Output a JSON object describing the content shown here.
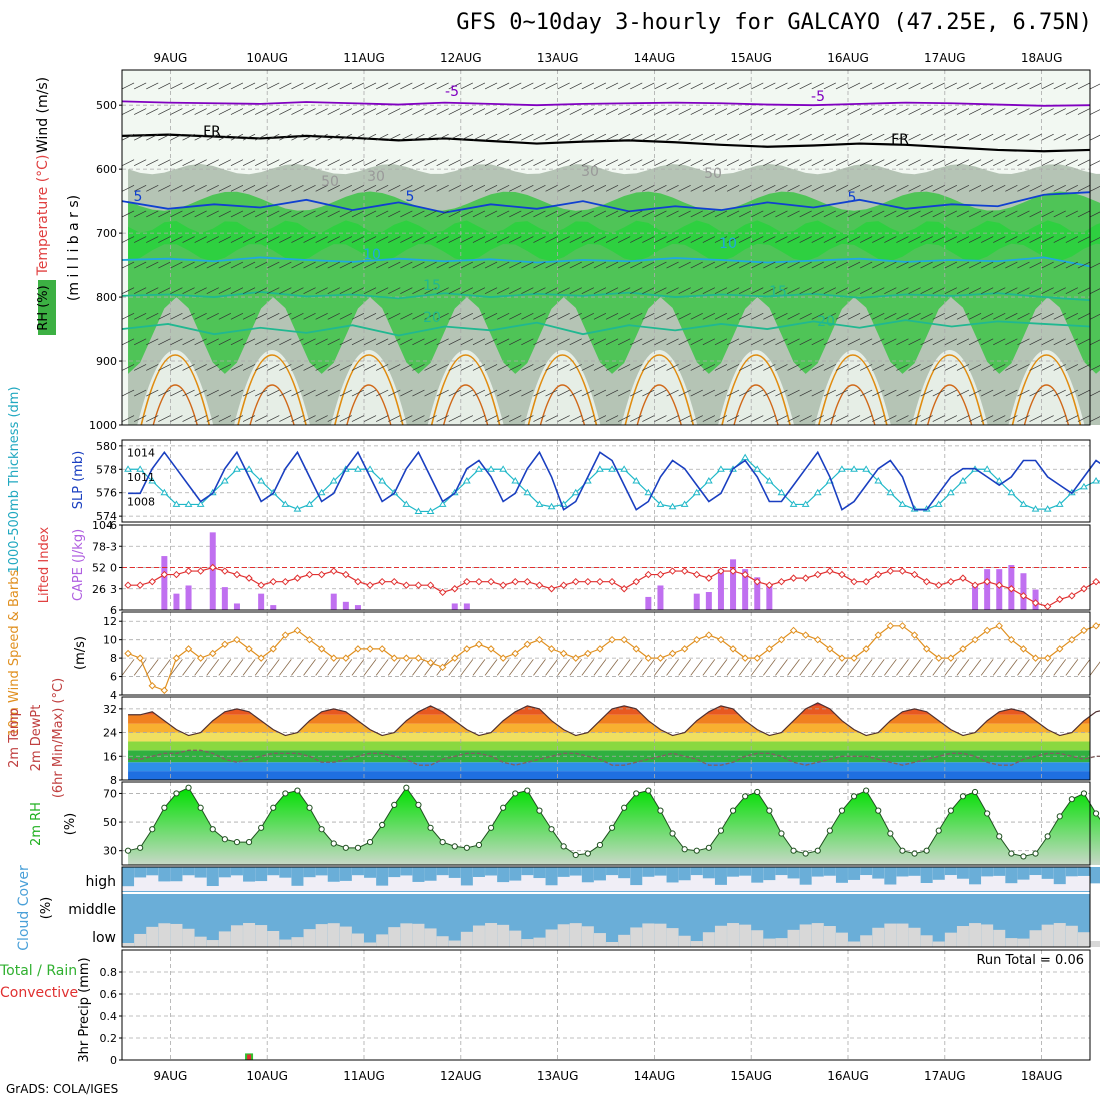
{
  "title": "GFS 0~10day 3-hourly for GALCAYO (47.25E, 6.75N)",
  "credit": "GrADS: COLA/IGES",
  "colors": {
    "rh_green": "#3cb043",
    "rh_bright": "#00e000",
    "rh_grey": "#b5c4b5",
    "temp_line": "#1040d0",
    "temp_cyan": "#20a8e0",
    "temp_teal": "#20b890",
    "temp_orange": "#e08c10",
    "freezing": "#000000",
    "wind_purple": "#8000c0",
    "slp": "#1a3fc0",
    "thickness": "#20b8c8",
    "cape": "#c070f0",
    "lifted": "#e03030",
    "wind10m": "#e09020",
    "cloud_blue": "#6aaed8",
    "cloud_grey": "#d8d8d8",
    "precip_green": "#30c030",
    "precip_red": "#e03030"
  },
  "chart_data": {
    "type": "meteogram",
    "time_axis": {
      "labels": [
        "9AUG",
        "10AUG",
        "11AUG",
        "12AUG",
        "13AUG",
        "14AUG",
        "15AUG",
        "16AUG",
        "17AUG",
        "18AUG"
      ],
      "label_position_days": [
        0.5,
        1.5,
        2.5,
        3.5,
        4.5,
        5.5,
        6.5,
        7.5,
        8.5,
        9.5
      ],
      "range_days": [
        0,
        10
      ],
      "step_hours": 3
    },
    "panels": [
      {
        "id": "upper_air",
        "ylabel": "(m i l l i b a r s)",
        "side_labels": [
          "RH (%)",
          "Temperature (°C)",
          "Wind (m/s)"
        ],
        "yticks": [
          500,
          600,
          700,
          800,
          900,
          1000
        ],
        "ylim": [
          1000,
          445
        ],
        "contour_labels": [
          "-5",
          "-5",
          "FR",
          "FR",
          "5",
          "5",
          "5",
          "10",
          "10",
          "15",
          "15",
          "20",
          "20",
          "30",
          "30",
          "50",
          "50"
        ],
        "isotherms": [
          {
            "label": "-5",
            "p": [
              494,
              496,
              497,
              498,
              495,
              497,
              499,
              496,
              498,
              500,
              498,
              497,
              496,
              497,
              499,
              500,
              498,
              496,
              497,
              499,
              501,
              500
            ]
          },
          {
            "label": "FR",
            "p": [
              548,
              546,
              549,
              552,
              548,
              551,
              555,
              552,
              556,
              560,
              557,
              555,
              558,
              562,
              565,
              563,
              560,
              562,
              566,
              570,
              572,
              570
            ]
          },
          {
            "label": "5",
            "p": [
              650,
              662,
              655,
              660,
              648,
              664,
              652,
              668,
              655,
              662,
              650,
              666,
              658,
              664,
              652,
              660,
              648,
              662,
              655,
              658,
              640,
              636
            ]
          },
          {
            "label": "10",
            "p": [
              742,
              740,
              744,
              738,
              742,
              745,
              740,
              744,
              741,
              746,
              742,
              744,
              739,
              742,
              746,
              743,
              740,
              745,
              742,
              744,
              738,
              752
            ]
          },
          {
            "label": "15",
            "p": [
              798,
              796,
              800,
              792,
              799,
              796,
              802,
              794,
              800,
              795,
              798,
              793,
              800,
              796,
              799,
              795,
              801,
              796,
              798,
              794,
              800,
              805
            ]
          },
          {
            "label": "20",
            "p": [
              850,
              842,
              858,
              848,
              856,
              844,
              860,
              846,
              852,
              840,
              858,
              844,
              852,
              842,
              850,
              838,
              848,
              836,
              846,
              838,
              842,
              846
            ]
          }
        ]
      },
      {
        "id": "slp_thickness",
        "side_labels": [
          "1000-500mb Thickness (dm)",
          "SLP (mb)"
        ],
        "left_ticks": [
          574,
          576,
          578,
          580
        ],
        "left_ylim": [
          573.5,
          580.5
        ],
        "right_ticks": [
          1008,
          1011,
          1014
        ],
        "right_ylim": [
          1005.5,
          1015.5
        ],
        "slp": [
          1009,
          1009,
          1012,
          1014,
          1012,
          1010,
          1008,
          1009,
          1012,
          1014,
          1011,
          1008,
          1009,
          1012,
          1014,
          1011,
          1008,
          1009,
          1012,
          1014,
          1011,
          1008,
          1009,
          1012,
          1014,
          1011,
          1008,
          1009,
          1012,
          1013,
          1011,
          1008,
          1009,
          1012,
          1014,
          1011,
          1007,
          1008,
          1011,
          1014,
          1013,
          1010,
          1007,
          1008,
          1011,
          1013,
          1012,
          1010,
          1008,
          1009,
          1012,
          1013,
          1011,
          1008,
          1008,
          1010,
          1012,
          1014,
          1011,
          1007,
          1008,
          1010,
          1012,
          1013,
          1011,
          1007,
          1007,
          1009,
          1011,
          1012,
          1012,
          1011,
          1010,
          1011,
          1013,
          1013,
          1011,
          1010,
          1009,
          1011,
          1013,
          1012
        ],
        "thickness": [
          578,
          578,
          577,
          576,
          575,
          575,
          575,
          576,
          577,
          578,
          578,
          577,
          576,
          575,
          574.6,
          575,
          576,
          577,
          578,
          578,
          578,
          577,
          576,
          575,
          574.4,
          574.4,
          575,
          576,
          577,
          578,
          578,
          578,
          577,
          576,
          575,
          574.8,
          575,
          576,
          577,
          578,
          578,
          578,
          577,
          576,
          575,
          574.8,
          575,
          576,
          577,
          578,
          578,
          579,
          578,
          577,
          576,
          575,
          575,
          576,
          577,
          578,
          578,
          578,
          577,
          576,
          575,
          574.6,
          574.6,
          575,
          576,
          577,
          578,
          578,
          577,
          576,
          575,
          574.6,
          574.6,
          575,
          576,
          576.5,
          577,
          577
        ]
      },
      {
        "id": "cape_li",
        "side_labels": [
          "Lifted Index",
          "CAPE (J/kg)"
        ],
        "left_ticks": [
          -6,
          -3,
          0,
          3,
          6
        ],
        "left_ylim": [
          6,
          -6
        ],
        "right_ticks": [
          26,
          52,
          78,
          104
        ],
        "right_ylim": [
          0,
          104
        ],
        "zero_line": 0,
        "cape": [
          0,
          0,
          0,
          66,
          20,
          30,
          0,
          95,
          28,
          8,
          0,
          20,
          6,
          0,
          0,
          0,
          0,
          20,
          10,
          6,
          0,
          0,
          0,
          0,
          0,
          0,
          0,
          8,
          8,
          0,
          0,
          0,
          0,
          0,
          0,
          0,
          0,
          0,
          0,
          0,
          0,
          0,
          0,
          16,
          30,
          0,
          0,
          20,
          22,
          50,
          62,
          50,
          40,
          30,
          0,
          0,
          0,
          0,
          0,
          0,
          0,
          0,
          0,
          0,
          0,
          0,
          0,
          0,
          0,
          0,
          30,
          50,
          50,
          55,
          45,
          25,
          0,
          0,
          0,
          0,
          0,
          0
        ],
        "lifted_index": [
          2.5,
          2.5,
          2,
          1,
          1,
          0.5,
          0.5,
          0,
          0.5,
          1,
          1.5,
          2.5,
          2,
          2,
          1.5,
          1,
          1,
          0.5,
          1,
          2,
          2.5,
          2,
          2,
          2.5,
          2.5,
          2.5,
          3.5,
          3,
          2,
          2,
          2,
          2.5,
          2,
          2,
          2.5,
          3,
          2.5,
          2,
          2,
          2,
          2,
          3,
          2,
          1,
          1,
          0.5,
          0.5,
          1,
          1.5,
          0.5,
          0.5,
          1,
          2,
          2.5,
          2,
          1.5,
          1.5,
          1,
          0.5,
          1,
          2,
          2,
          1,
          0.5,
          0.5,
          1,
          2,
          2.5,
          2,
          1.5,
          2.5,
          2,
          2.5,
          3,
          4,
          5,
          5.5,
          4.5,
          4,
          3,
          2,
          2.5
        ]
      },
      {
        "id": "wind10m",
        "side_labels": [
          "10m Wind Speed & Barbs",
          "(m/s)"
        ],
        "yticks": [
          4,
          6,
          8,
          10,
          12
        ],
        "ylim": [
          4,
          13
        ],
        "speed": [
          8.5,
          8,
          5,
          4.5,
          8,
          9,
          8,
          8.5,
          9.5,
          10,
          9,
          8,
          9,
          10.5,
          11,
          10,
          9,
          8,
          8,
          9,
          9,
          9,
          8,
          8,
          8,
          7.5,
          7,
          8,
          9,
          9.5,
          9,
          8,
          8.5,
          9.5,
          10,
          9,
          8.5,
          8,
          8.5,
          9,
          10,
          10,
          9,
          8,
          8,
          8.5,
          9,
          10,
          10.5,
          10,
          9,
          8,
          8,
          9,
          10,
          11,
          10.5,
          10,
          9,
          8,
          8,
          9,
          10.5,
          11.5,
          11.5,
          10.5,
          9,
          8,
          8,
          9,
          10,
          11,
          11.5,
          10,
          9,
          8,
          8,
          9,
          10,
          11,
          11.5,
          12
        ]
      },
      {
        "id": "temp2m",
        "side_labels": [
          "2m Temp",
          "2m DewPt",
          "(6hr Min/Max) (°C)"
        ],
        "yticks": [
          8,
          16,
          24,
          32
        ],
        "ylim": [
          8,
          36
        ],
        "temp": [
          30,
          30,
          31,
          28,
          25,
          23,
          24,
          28,
          31,
          32,
          31,
          28,
          25,
          23,
          24,
          28,
          31,
          32,
          31,
          28,
          25,
          23,
          24,
          28,
          31,
          33,
          31,
          28,
          25,
          23,
          24,
          28,
          31,
          33,
          32,
          28,
          25,
          23,
          24,
          28,
          32,
          33,
          32,
          28,
          25,
          23,
          24,
          28,
          31,
          33,
          32,
          28,
          25,
          23,
          24,
          28,
          32,
          34,
          32,
          28,
          25,
          23,
          24,
          28,
          31,
          32,
          31,
          28,
          25,
          23,
          24,
          28,
          31,
          32,
          31,
          28,
          25,
          23,
          24,
          28,
          31,
          32
        ],
        "dewpoint": [
          15,
          15,
          16,
          17,
          17,
          18,
          18,
          17,
          15,
          14,
          15,
          16,
          17,
          17,
          17,
          16,
          14,
          14,
          15,
          16,
          17,
          17,
          16,
          15,
          13,
          13,
          15,
          16,
          17,
          17,
          16,
          14,
          13,
          14,
          15,
          16,
          17,
          17,
          16,
          15,
          13,
          13,
          14,
          15,
          16,
          17,
          16,
          15,
          13,
          13,
          14,
          16,
          17,
          17,
          16,
          14,
          13,
          14,
          15,
          16,
          16,
          16,
          15,
          14,
          13,
          14,
          15,
          16,
          17,
          17,
          16,
          14,
          13,
          13,
          15,
          16,
          17,
          17,
          16,
          15,
          16,
          16
        ]
      },
      {
        "id": "rh2m",
        "side_labels": [
          "2m RH",
          "(%)"
        ],
        "yticks": [
          30,
          50,
          70
        ],
        "ylim": [
          20,
          78
        ],
        "rh": [
          30,
          32,
          45,
          60,
          70,
          74,
          60,
          45,
          38,
          36,
          36,
          46,
          60,
          70,
          72,
          60,
          45,
          35,
          32,
          32,
          36,
          48,
          62,
          74,
          62,
          46,
          36,
          33,
          32,
          34,
          46,
          60,
          70,
          72,
          58,
          45,
          33,
          27,
          28,
          34,
          46,
          60,
          70,
          72,
          58,
          42,
          31,
          30,
          32,
          44,
          58,
          68,
          71,
          58,
          42,
          30,
          28,
          30,
          44,
          58,
          68,
          72,
          58,
          42,
          30,
          28,
          30,
          44,
          58,
          68,
          71,
          56,
          40,
          28,
          26,
          28,
          40,
          54,
          66,
          70,
          56,
          44
        ],
        "axis_label": "(%)"
      },
      {
        "id": "cloud",
        "side_labels": [
          "Cloud Cover",
          "(%)"
        ],
        "level_labels": [
          "high",
          "middle",
          "low"
        ]
      },
      {
        "id": "precip",
        "side_labels": [
          "Total / Rain",
          "Convective",
          "3hr Precip (mm)"
        ],
        "yticks": [
          0,
          0.2,
          0.4,
          0.6,
          0.8
        ],
        "ylim": [
          0,
          1
        ],
        "run_total_label": "Run Total = 0.06",
        "total": [
          0,
          0,
          0,
          0,
          0,
          0,
          0,
          0,
          0,
          0,
          0.06,
          0,
          0,
          0,
          0,
          0,
          0,
          0,
          0,
          0,
          0,
          0,
          0,
          0,
          0,
          0,
          0,
          0,
          0,
          0,
          0,
          0,
          0,
          0,
          0,
          0,
          0,
          0,
          0,
          0,
          0,
          0,
          0,
          0,
          0,
          0,
          0,
          0,
          0,
          0,
          0,
          0,
          0,
          0,
          0,
          0,
          0,
          0,
          0,
          0,
          0,
          0,
          0,
          0,
          0,
          0,
          0,
          0,
          0,
          0,
          0,
          0,
          0,
          0,
          0,
          0,
          0,
          0,
          0,
          0,
          0,
          0
        ],
        "convective": [
          0,
          0,
          0,
          0,
          0,
          0,
          0,
          0,
          0,
          0,
          0.05,
          0,
          0,
          0,
          0,
          0,
          0,
          0,
          0,
          0,
          0,
          0,
          0,
          0,
          0,
          0,
          0,
          0,
          0,
          0,
          0,
          0,
          0,
          0,
          0,
          0,
          0,
          0,
          0,
          0,
          0,
          0,
          0,
          0,
          0,
          0,
          0,
          0,
          0,
          0,
          0,
          0,
          0,
          0,
          0,
          0,
          0,
          0,
          0,
          0,
          0,
          0,
          0,
          0,
          0,
          0,
          0,
          0,
          0,
          0,
          0,
          0,
          0,
          0,
          0,
          0,
          0,
          0,
          0,
          0,
          0,
          0
        ]
      }
    ]
  }
}
